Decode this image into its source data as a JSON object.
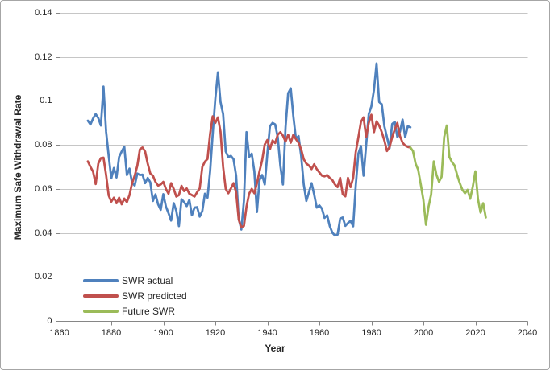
{
  "figure": {
    "border_color": "#a6a6a6",
    "background": "#ffffff",
    "gridline_color": "#c6c6c6",
    "axis_line_color": "#868686",
    "text_color": "#262626"
  },
  "chart_data": {
    "type": "line",
    "title": "",
    "xlabel": "Year",
    "ylabel": "Maximum Safe Withdrawal Rate",
    "xlim": [
      1860,
      2040
    ],
    "ylim": [
      0,
      0.14
    ],
    "x_tick_step": 20,
    "y_tick_step": 0.02,
    "grid": "horizontal",
    "legend_position": "inside-bottom-left",
    "x_tick_values": [
      1860,
      1880,
      1900,
      1920,
      1940,
      1960,
      1980,
      2000,
      2020,
      2040
    ],
    "x_tick_labels": [
      "1860",
      "1880",
      "1900",
      "1920",
      "1940",
      "1960",
      "1980",
      "2000",
      "2020",
      "2040"
    ],
    "y_tick_values": [
      0,
      0.02,
      0.04,
      0.06,
      0.08,
      0.1,
      0.12,
      0.14
    ],
    "y_tick_labels": [
      "0",
      "0.02",
      "0.04",
      "0.06",
      "0.08",
      "0.1",
      "0.12",
      "0.14"
    ],
    "series": [
      {
        "name": "SWR actual",
        "color": "#4f81bd",
        "x_start": 1871,
        "x_step": 1,
        "values": [
          0.091,
          0.0893,
          0.092,
          0.094,
          0.0922,
          0.0888,
          0.1065,
          0.086,
          0.075,
          0.0648,
          0.0695,
          0.0652,
          0.0745,
          0.077,
          0.0792,
          0.0663,
          0.0692,
          0.0628,
          0.0615,
          0.067,
          0.0663,
          0.0665,
          0.0626,
          0.065,
          0.063,
          0.0545,
          0.0575,
          0.053,
          0.0505,
          0.0576,
          0.052,
          0.049,
          0.0456,
          0.0535,
          0.05,
          0.0431,
          0.0553,
          0.054,
          0.0522,
          0.055,
          0.048,
          0.0515,
          0.0517,
          0.0474,
          0.05,
          0.0578,
          0.056,
          0.068,
          0.085,
          0.101,
          0.113,
          0.0995,
          0.094,
          0.077,
          0.0745,
          0.075,
          0.0735,
          0.066,
          0.0465,
          0.0415,
          0.0545,
          0.0858,
          0.0745,
          0.076,
          0.068,
          0.0495,
          0.064,
          0.0663,
          0.062,
          0.076,
          0.0885,
          0.09,
          0.0893,
          0.0835,
          0.0705,
          0.062,
          0.088,
          0.1035,
          0.1057,
          0.093,
          0.0827,
          0.084,
          0.075,
          0.062,
          0.0545,
          0.0585,
          0.0626,
          0.0575,
          0.0515,
          0.0525,
          0.051,
          0.0468,
          0.048,
          0.0431,
          0.0401,
          0.0388,
          0.0392,
          0.0465,
          0.047,
          0.0432,
          0.0445,
          0.0455,
          0.043,
          0.0615,
          0.076,
          0.0795,
          0.066,
          0.08,
          0.094,
          0.0975,
          0.105,
          0.117,
          0.0995,
          0.0985,
          0.0885,
          0.0835,
          0.0785,
          0.0895,
          0.0905,
          0.0835,
          0.086,
          0.0915,
          0.0835,
          0.0885,
          0.088
        ]
      },
      {
        "name": "SWR predicted",
        "color": "#c0504d",
        "x_start": 1871,
        "x_step": 1,
        "values": [
          0.0725,
          0.07,
          0.0678,
          0.0622,
          0.0715,
          0.074,
          0.0742,
          0.0663,
          0.057,
          0.0542,
          0.056,
          0.0535,
          0.056,
          0.053,
          0.0556,
          0.054,
          0.0572,
          0.0626,
          0.066,
          0.0705,
          0.078,
          0.0788,
          0.077,
          0.0715,
          0.067,
          0.066,
          0.0632,
          0.0615,
          0.062,
          0.0632,
          0.06,
          0.0578,
          0.0626,
          0.06,
          0.0565,
          0.0572,
          0.0614,
          0.059,
          0.0602,
          0.0578,
          0.0572,
          0.0565,
          0.0585,
          0.0602,
          0.07,
          0.0724,
          0.0736,
          0.085,
          0.093,
          0.09,
          0.0925,
          0.086,
          0.07,
          0.06,
          0.058,
          0.0602,
          0.0626,
          0.0585,
          0.046,
          0.0425,
          0.0432,
          0.052,
          0.0578,
          0.06,
          0.058,
          0.0625,
          0.068,
          0.073,
          0.0802,
          0.0822,
          0.078,
          0.082,
          0.0808,
          0.0846,
          0.0858,
          0.0842,
          0.0815,
          0.0846,
          0.081,
          0.0846,
          0.0826,
          0.081,
          0.078,
          0.0735,
          0.0715,
          0.0706,
          0.069,
          0.0712,
          0.069,
          0.0675,
          0.066,
          0.0657,
          0.0663,
          0.065,
          0.064,
          0.062,
          0.0608,
          0.065,
          0.0575,
          0.0566,
          0.065,
          0.0608,
          0.065,
          0.0767,
          0.0834,
          0.0905,
          0.0925,
          0.0835,
          0.09,
          0.0937,
          0.0858,
          0.0907,
          0.0888,
          0.0858,
          0.082,
          0.0772,
          0.079,
          0.0835,
          0.087,
          0.09,
          0.084,
          0.081,
          0.0797,
          0.0791,
          0.0788
        ]
      },
      {
        "name": "Future SWR",
        "color": "#9bbb59",
        "x_start": 1995,
        "x_step": 1,
        "values": [
          0.0788,
          0.0772,
          0.0715,
          0.0687,
          0.062,
          0.055,
          0.0437,
          0.052,
          0.0575,
          0.0725,
          0.0665,
          0.0632,
          0.0655,
          0.0835,
          0.0888,
          0.0745,
          0.0722,
          0.0706,
          0.0663,
          0.0626,
          0.0596,
          0.058,
          0.0596,
          0.0555,
          0.061,
          0.068,
          0.0553,
          0.0492,
          0.0535,
          0.047
        ]
      }
    ]
  }
}
